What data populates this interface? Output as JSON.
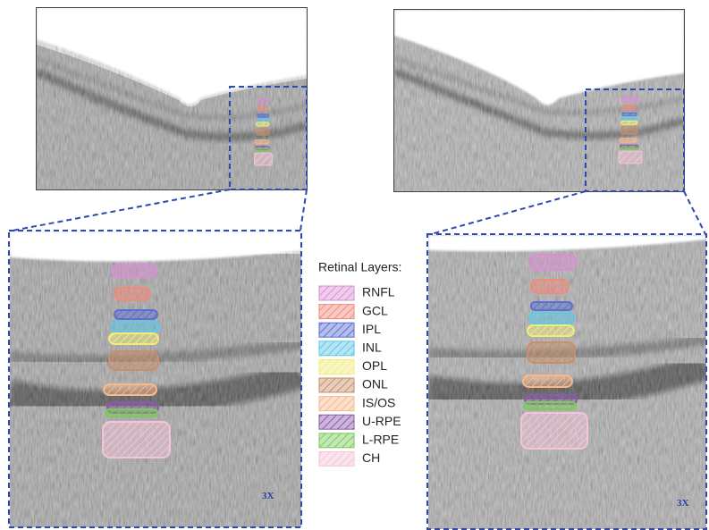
{
  "legend": {
    "title": "Retinal Layers:",
    "items": [
      {
        "label": "RNFL",
        "color": "#d98fd3"
      },
      {
        "label": "GCL",
        "color": "#f08a7a"
      },
      {
        "label": "IPL",
        "color": "#5a6fd0"
      },
      {
        "label": "INL",
        "color": "#5ec8e6"
      },
      {
        "label": "OPL",
        "color": "#f2ec7a"
      },
      {
        "label": "ONL",
        "color": "#c8906a"
      },
      {
        "label": "IS/OS",
        "color": "#f7b88a"
      },
      {
        "label": "U-RPE",
        "color": "#8c5aa8"
      },
      {
        "label": "L-RPE",
        "color": "#7acb5a"
      },
      {
        "label": "CH",
        "color": "#f5c4d8"
      }
    ]
  },
  "panels": [
    {
      "zoom_label": "3X"
    },
    {
      "zoom_label": "3X"
    }
  ]
}
